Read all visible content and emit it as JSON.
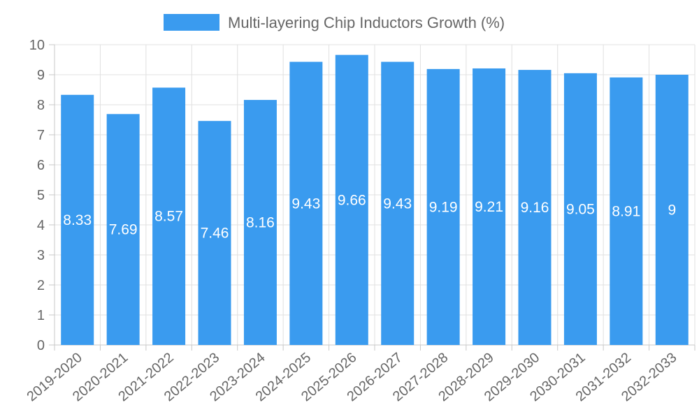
{
  "chart_data": {
    "type": "bar",
    "title": "",
    "xlabel": "",
    "ylabel": "",
    "ylim": [
      0,
      10
    ],
    "yticks": [
      0,
      1,
      2,
      3,
      4,
      5,
      6,
      7,
      8,
      9,
      10
    ],
    "legend": {
      "label": "Multi-layering Chip Inductors Growth (%)",
      "position": "top"
    },
    "categories": [
      "2019-2020",
      "2020-2021",
      "2021-2022",
      "2022-2023",
      "2023-2024",
      "2024-2025",
      "2025-2026",
      "2026-2027",
      "2027-2028",
      "2028-2029",
      "2029-2030",
      "2030-2031",
      "2031-2032",
      "2032-2033"
    ],
    "series": [
      {
        "name": "Multi-layering Chip Inductors Growth (%)",
        "values": [
          8.33,
          7.69,
          8.57,
          7.46,
          8.16,
          9.43,
          9.66,
          9.43,
          9.19,
          9.21,
          9.16,
          9.05,
          8.91,
          9
        ],
        "color": "#3a9bef"
      }
    ],
    "grid": true
  }
}
